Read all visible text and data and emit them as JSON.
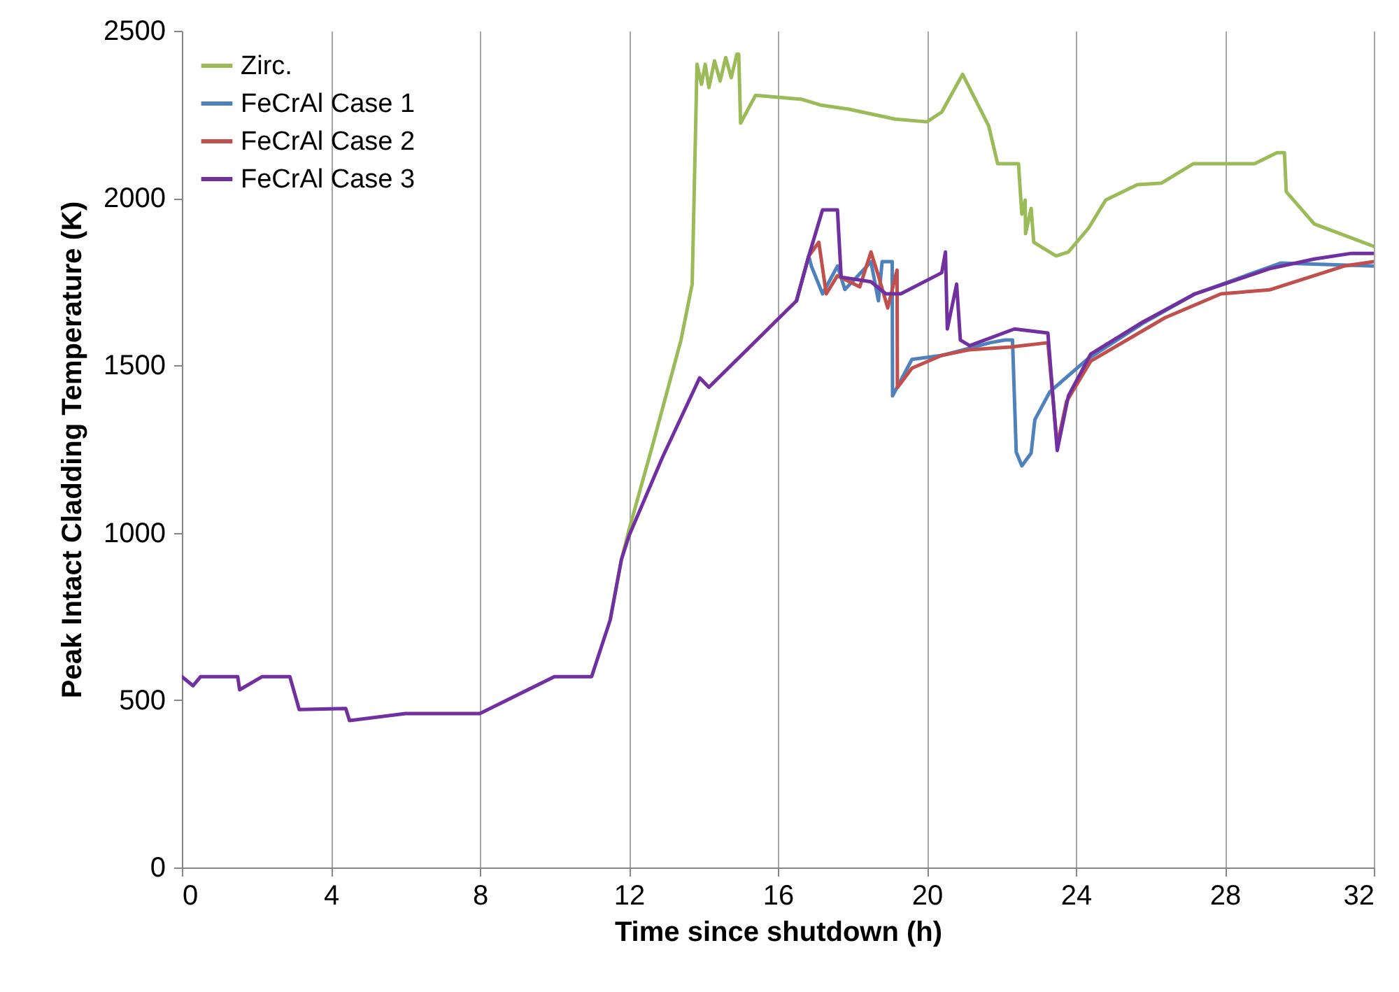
{
  "chart_data": {
    "type": "line",
    "xlabel": "Time since shutdown (h)",
    "ylabel": "Peak Intact Cladding Temperature (K)",
    "xlim": [
      0,
      32
    ],
    "xticks": [
      0,
      4,
      8,
      12,
      16,
      20,
      24,
      28,
      32
    ],
    "ylim": [
      0,
      2500
    ],
    "yticks": [
      0,
      500,
      1000,
      1500,
      2000,
      2500
    ],
    "grid": "x",
    "legend": "top left",
    "line_style": "solid",
    "marker": "none",
    "series": [
      {
        "name": "Zirc.",
        "color": "#9bbb59",
        "x": [
          11.5,
          11.8,
          12.02,
          12.65,
          13.4,
          13.7,
          13.83,
          13.95,
          14.05,
          14.15,
          14.3,
          14.45,
          14.6,
          14.75,
          14.9,
          14.95,
          15,
          15.4,
          16.65,
          17.15,
          17.9,
          19.15,
          20,
          20.4,
          20.96,
          21.66,
          21.9,
          22.46,
          22.55,
          22.64,
          22.65,
          22.8,
          22.87,
          23.47,
          23.8,
          24.34,
          24.8,
          25.65,
          26.3,
          27.16,
          28.8,
          29.4,
          29.6,
          29.65,
          30.4,
          32
        ],
        "values": [
          740,
          920,
          1015,
          1267,
          1576,
          1743,
          2400,
          2340,
          2400,
          2330,
          2410,
          2350,
          2420,
          2360,
          2430,
          2430,
          2224,
          2307,
          2295,
          2278,
          2266,
          2236,
          2228,
          2257,
          2370,
          2216,
          2103,
          2103,
          1952,
          1994,
          1894,
          1969,
          1868,
          1827,
          1839,
          1910,
          1994,
          2040,
          2045,
          2103,
          2103,
          2136,
          2136,
          2019,
          1923,
          1856
        ]
      },
      {
        "name": "FeCrAl Case 1",
        "color": "#4f81bd",
        "x": [
          16.5,
          16.83,
          16.9,
          17.2,
          17.6,
          17.8,
          18.15,
          18.5,
          18.7,
          18.8,
          19.07,
          19.08,
          19.6,
          20.4,
          21.7,
          22.1,
          22.3,
          22.4,
          22.55,
          22.8,
          22.9,
          23.3,
          24.3,
          25.8,
          27.2,
          29.5,
          32
        ],
        "values": [
          1693,
          1827,
          1797,
          1714,
          1797,
          1727,
          1768,
          1810,
          1693,
          1810,
          1810,
          1409,
          1518,
          1530,
          1568,
          1576,
          1576,
          1241,
          1200,
          1238,
          1338,
          1421,
          1518,
          1626,
          1714,
          1806,
          1797
        ]
      },
      {
        "name": "FeCrAl Case 2",
        "color": "#c0504d",
        "x": [
          16.5,
          16.83,
          17.1,
          17.3,
          17.6,
          18.2,
          18.5,
          18.7,
          18.95,
          19.2,
          19.21,
          19.6,
          20.4,
          21.15,
          22.25,
          23.25,
          23.5,
          23.75,
          24.4,
          26.4,
          27.9,
          29.2,
          31.2,
          32
        ],
        "values": [
          1693,
          1827,
          1868,
          1714,
          1768,
          1735,
          1839,
          1768,
          1672,
          1785,
          1434,
          1492,
          1530,
          1547,
          1555,
          1568,
          1262,
          1392,
          1513,
          1643,
          1714,
          1726,
          1797,
          1810
        ]
      },
      {
        "name": "FeCrAl Case 3",
        "color": "#7030a0",
        "x": [
          0,
          0.3,
          0.5,
          1.5,
          1.55,
          2.15,
          2.9,
          3.15,
          4.4,
          4.5,
          6,
          8,
          10,
          11,
          11.5,
          11.8,
          12,
          12.9,
          13.9,
          14.15,
          16.5,
          16.83,
          17.2,
          17.6,
          17.7,
          18.5,
          18.9,
          19.3,
          20.4,
          20.5,
          20.55,
          20.8,
          20.9,
          21.15,
          22.35,
          23.25,
          23.5,
          23.8,
          24.4,
          25.8,
          27.2,
          29.2,
          30.4,
          31.4,
          32
        ],
        "values": [
          570,
          543,
          570,
          570,
          531,
          570,
          570,
          472,
          475,
          439,
          460,
          460,
          570,
          570,
          740,
          920,
          990,
          1225,
          1463,
          1435,
          1693,
          1827,
          1965,
          1965,
          1764,
          1750,
          1714,
          1714,
          1777,
          1839,
          1609,
          1743,
          1576,
          1559,
          1609,
          1597,
          1246,
          1409,
          1534,
          1630,
          1714,
          1789,
          1818,
          1835,
          1835
        ]
      }
    ]
  }
}
